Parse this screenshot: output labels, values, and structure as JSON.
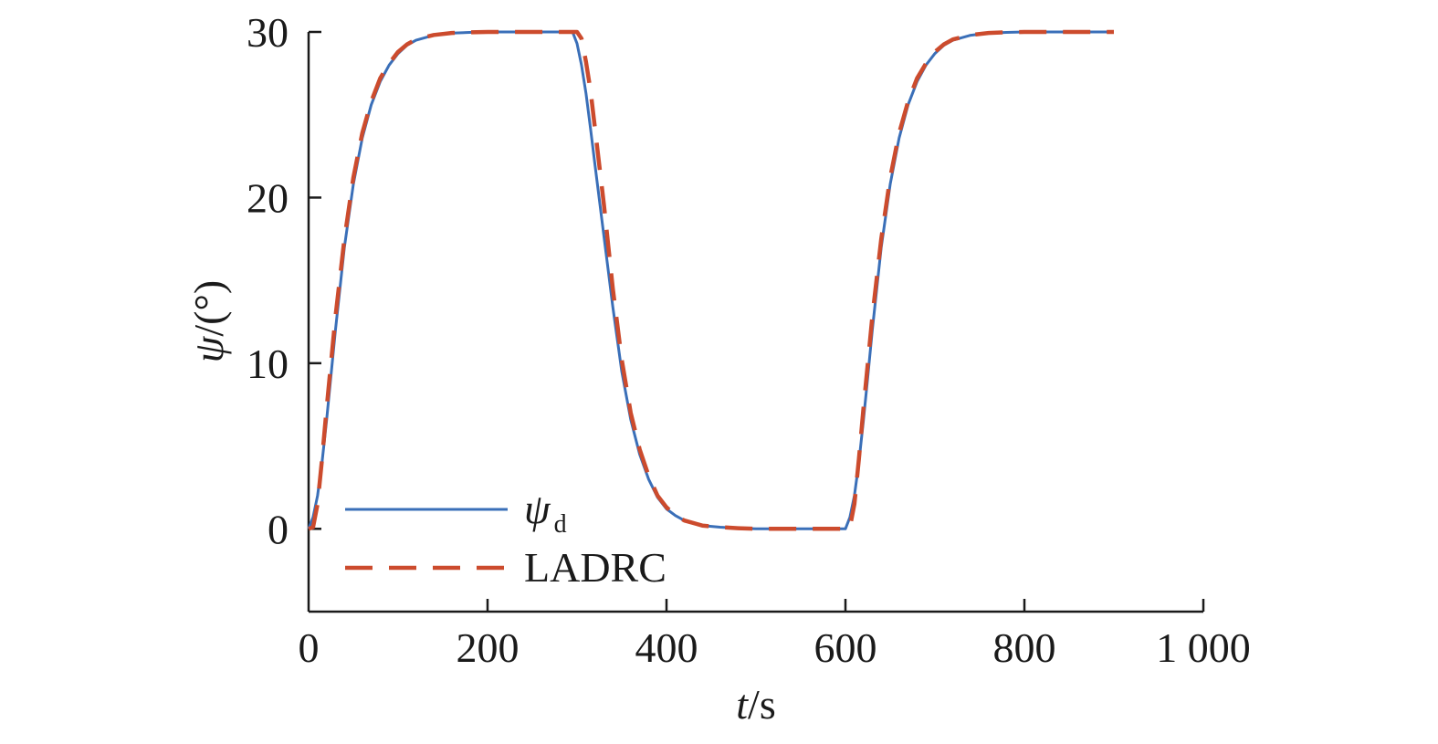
{
  "chart_data": {
    "type": "line",
    "xlabel_italic": "t",
    "xlabel_rest": "/s",
    "ylabel_italic": "ψ",
    "ylabel_rest": "/(°)",
    "xlim": [
      0,
      1000
    ],
    "ylim": [
      -5,
      30
    ],
    "xticks": [
      0,
      200,
      400,
      600,
      800,
      1000
    ],
    "xtick_labels": [
      "0",
      "200",
      "400",
      "600",
      "800",
      "1 000"
    ],
    "yticks": [
      0,
      10,
      20,
      30
    ],
    "ytick_labels": [
      "0",
      "10",
      "20",
      "30"
    ],
    "grid": false,
    "legend_position": "bottom-left",
    "series": [
      {
        "name_main": "ψ",
        "name_sub": "d",
        "color": "#3a6fb8",
        "style": "solid",
        "x": [
          0,
          5,
          10,
          15,
          20,
          30,
          40,
          50,
          60,
          70,
          80,
          90,
          100,
          110,
          120,
          140,
          160,
          180,
          200,
          250,
          295,
          300,
          305,
          310,
          315,
          320,
          330,
          340,
          350,
          360,
          370,
          380,
          390,
          400,
          410,
          420,
          440,
          460,
          480,
          500,
          550,
          600,
          605,
          610,
          615,
          620,
          625,
          630,
          640,
          650,
          660,
          670,
          680,
          690,
          700,
          710,
          720,
          740,
          760,
          780,
          800,
          850,
          900
        ],
        "y": [
          0,
          0.7,
          2.0,
          4.0,
          6.5,
          12,
          17,
          20.8,
          23.6,
          25.6,
          27.0,
          28.0,
          28.7,
          29.2,
          29.5,
          29.8,
          29.93,
          29.97,
          30,
          30,
          30,
          29.3,
          28,
          26.3,
          24.2,
          22,
          17.7,
          13.4,
          9.5,
          6.6,
          4.5,
          3.0,
          1.9,
          1.2,
          0.8,
          0.5,
          0.2,
          0.1,
          0.04,
          0,
          0,
          0,
          0.7,
          2.0,
          4.0,
          6.5,
          9.2,
          12,
          17,
          20.8,
          23.6,
          25.6,
          27.0,
          28.0,
          28.7,
          29.2,
          29.5,
          29.8,
          29.93,
          29.97,
          30,
          30,
          30
        ]
      },
      {
        "name_main": "LADRC",
        "name_sub": "",
        "color": "#cc4b2d",
        "style": "dashed",
        "x": [
          0,
          5,
          10,
          15,
          20,
          30,
          40,
          50,
          60,
          70,
          80,
          90,
          100,
          110,
          120,
          140,
          160,
          180,
          200,
          250,
          300,
          305,
          310,
          315,
          320,
          330,
          340,
          350,
          360,
          370,
          380,
          390,
          400,
          410,
          420,
          440,
          460,
          480,
          500,
          550,
          600,
          605,
          610,
          615,
          620,
          625,
          630,
          640,
          650,
          660,
          670,
          680,
          690,
          700,
          710,
          720,
          740,
          760,
          780,
          800,
          850,
          900
        ],
        "y": [
          0,
          0.1,
          1.5,
          4.2,
          7.2,
          12.8,
          17.5,
          21.2,
          23.9,
          25.8,
          27.2,
          28.1,
          28.8,
          29.25,
          29.55,
          29.82,
          29.94,
          29.98,
          30,
          30,
          30,
          29.6,
          28.2,
          26.5,
          24.2,
          19.6,
          14.5,
          10.2,
          7.0,
          4.8,
          3.2,
          2.0,
          1.3,
          0.8,
          0.5,
          0.2,
          0.1,
          0.04,
          0,
          0,
          0,
          0.1,
          1.5,
          4.2,
          7.2,
          10.0,
          12.8,
          17.5,
          21.2,
          23.9,
          25.8,
          27.2,
          28.1,
          28.8,
          29.25,
          29.55,
          29.82,
          29.94,
          29.98,
          30,
          30,
          30
        ]
      }
    ]
  }
}
